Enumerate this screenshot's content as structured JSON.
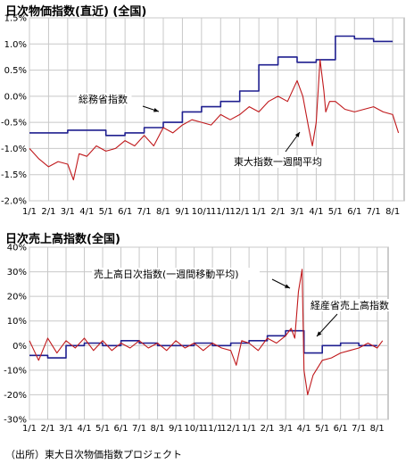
{
  "chart_data": [
    {
      "type": "line",
      "title": "日次物価指数(直近) (全国)",
      "xlabel": "",
      "ylabel": "",
      "ylim": [
        -2.0,
        1.5
      ],
      "ytick_labels": [
        "1.5%",
        "1.0%",
        "0.5%",
        "0.0%",
        "-0.5%",
        "-1.0%",
        "-1.5%",
        "-2.0%"
      ],
      "ytick_values": [
        1.5,
        1.0,
        0.5,
        0.0,
        -0.5,
        -1.0,
        -1.5,
        -2.0
      ],
      "x_tick_labels": [
        "1/1",
        "2/1",
        "3/1",
        "4/1",
        "5/1",
        "6/1",
        "7/1",
        "8/1",
        "9/1",
        "10/1",
        "11/1",
        "12/1",
        "1/1",
        "2/1",
        "3/1",
        "4/1",
        "5/1",
        "6/1",
        "7/1",
        "8/1"
      ],
      "grid": true,
      "series": [
        {
          "name": "総務省指数",
          "color": "#1f1f8f",
          "step": true,
          "x_month_index": [
            0,
            1,
            2,
            3,
            4,
            5,
            6,
            7,
            8,
            9,
            10,
            11,
            12,
            13,
            14,
            15,
            16,
            17,
            18
          ],
          "values": [
            -0.7,
            -0.7,
            -0.65,
            -0.65,
            -0.75,
            -0.7,
            -0.6,
            -0.5,
            -0.3,
            -0.2,
            -0.1,
            0.1,
            0.6,
            0.75,
            0.65,
            0.7,
            1.15,
            1.1,
            1.05
          ]
        },
        {
          "name": "東大指数一週間平均",
          "color": "#c0191c",
          "x_month_index": [
            0,
            0.5,
            1,
            1.5,
            2,
            2.3,
            2.6,
            3,
            3.5,
            4,
            4.5,
            5,
            5.5,
            6,
            6.5,
            7,
            7.5,
            8,
            8.5,
            9,
            9.5,
            10,
            10.5,
            11,
            11.5,
            12,
            12.5,
            13,
            13.5,
            14,
            14.3,
            14.6,
            14.8,
            15,
            15.2,
            15.4,
            15.5,
            15.7,
            16,
            16.5,
            17,
            17.5,
            18,
            18.5,
            19,
            19.3
          ],
          "values": [
            -1.0,
            -1.2,
            -1.35,
            -1.25,
            -1.3,
            -1.6,
            -1.1,
            -1.15,
            -0.95,
            -1.05,
            -1.0,
            -0.85,
            -0.95,
            -0.75,
            -0.95,
            -0.6,
            -0.7,
            -0.55,
            -0.45,
            -0.5,
            -0.55,
            -0.35,
            -0.45,
            -0.35,
            -0.2,
            -0.3,
            -0.1,
            0.0,
            -0.1,
            0.3,
            0.0,
            -0.6,
            -0.95,
            -0.5,
            0.7,
            0.1,
            -0.3,
            -0.1,
            -0.1,
            -0.25,
            -0.3,
            -0.25,
            -0.2,
            -0.3,
            -0.35,
            -0.7
          ]
        }
      ],
      "annotations": [
        {
          "text": "総務省指数"
        },
        {
          "text": "東大指数一週間平均"
        }
      ]
    },
    {
      "type": "line",
      "title": "日次売上高指数(全国)",
      "xlabel": "",
      "ylabel": "",
      "ylim": [
        -30,
        40
      ],
      "ytick_labels": [
        "40%",
        "30%",
        "20%",
        "10%",
        "0%",
        "-10%",
        "-20%",
        "-30%"
      ],
      "ytick_values": [
        40,
        30,
        20,
        10,
        0,
        -10,
        -20,
        -30
      ],
      "x_tick_labels": [
        "1/1",
        "2/1",
        "3/1",
        "4/1",
        "5/1",
        "6/1",
        "7/1",
        "8/1",
        "9/1",
        "10/1",
        "11/1",
        "12/1",
        "1/1",
        "2/1",
        "3/1",
        "4/1",
        "5/1",
        "6/1",
        "7/1",
        "8/1"
      ],
      "grid": true,
      "series": [
        {
          "name": "経産省売上高指数",
          "color": "#1f1f8f",
          "step": true,
          "x_month_index": [
            0,
            1,
            2,
            3,
            4,
            5,
            6,
            7,
            8,
            9,
            10,
            11,
            12,
            13,
            14,
            15,
            16,
            17,
            18
          ],
          "values": [
            -4,
            -5,
            0,
            1,
            0,
            2,
            1,
            0,
            0,
            1,
            0,
            1,
            2,
            4,
            6,
            -3,
            0,
            1,
            0
          ]
        },
        {
          "name": "売上高日次指数(一週間移動平均)",
          "color": "#c0191c",
          "x_month_index": [
            0,
            0.5,
            1,
            1.5,
            2,
            2.5,
            3,
            3.5,
            4,
            4.5,
            5,
            5.5,
            6,
            6.5,
            7,
            7.5,
            8,
            8.5,
            9,
            9.5,
            10,
            10.5,
            11,
            11.3,
            11.6,
            12,
            12.5,
            13,
            13.5,
            14,
            14.3,
            14.5,
            14.7,
            14.9,
            15,
            15.2,
            15.5,
            16,
            16.5,
            17,
            17.5,
            18,
            18.5,
            19,
            19.3
          ],
          "values": [
            2,
            -6,
            3,
            -3,
            2,
            -1,
            3,
            -2,
            2,
            -2,
            1,
            -1,
            2,
            -1,
            1,
            -2,
            2,
            -1,
            1,
            -2,
            1,
            -1,
            -2,
            -8,
            2,
            1,
            -2,
            3,
            1,
            4,
            7,
            3,
            22,
            31,
            -10,
            -20,
            -12,
            -6,
            -5,
            -3,
            -2,
            -1,
            1,
            -1,
            2
          ]
        }
      ],
      "annotations": [
        {
          "text": "売上高日次指数(一週間移動平均)"
        },
        {
          "text": "経産省売上高指数"
        }
      ]
    }
  ],
  "source_note": "（出所）東大日次物価指数プロジェクト"
}
